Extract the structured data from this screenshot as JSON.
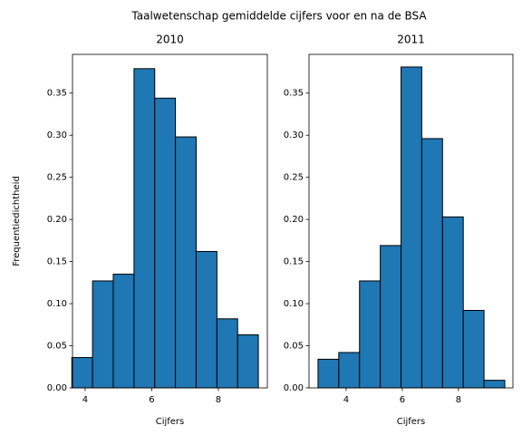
{
  "title": "Taalwetenschap gemiddelde cijfers voor en na de BSA",
  "chart_data": [
    {
      "type": "histogram",
      "title": "2010",
      "x_label": "Cijfers",
      "y_label": "Frequentiedichtheid",
      "color": "#1f77b4",
      "bins": [
        3.6,
        4.222,
        4.844,
        5.467,
        6.089,
        6.711,
        7.333,
        7.956,
        8.578,
        9.2
      ],
      "values": [
        0.036,
        0.127,
        0.135,
        0.379,
        0.344,
        0.298,
        0.162,
        0.082,
        0.063
      ],
      "xlim": [
        3.62,
        9.47
      ],
      "xticks": [
        4,
        6,
        8
      ],
      "ylim": [
        0,
        0.396
      ],
      "yticks": [
        {
          "value": 0,
          "label": "0.00"
        },
        {
          "value": 0.05,
          "label": "0.05"
        },
        {
          "value": 0.1,
          "label": "0.10"
        },
        {
          "value": 0.15,
          "label": "0.15"
        },
        {
          "value": 0.2,
          "label": "0.20"
        },
        {
          "value": 0.25,
          "label": "0.25"
        },
        {
          "value": 0.3,
          "label": "0.30"
        },
        {
          "value": 0.35,
          "label": "0.35"
        }
      ]
    },
    {
      "type": "histogram",
      "title": "2011",
      "x_label": "Cijfers",
      "color": "#1f77b4",
      "bins": [
        3.0,
        3.739,
        4.478,
        5.217,
        5.956,
        6.694,
        7.433,
        8.172,
        8.911,
        9.65
      ],
      "values": [
        0.034,
        0.042,
        0.127,
        0.169,
        0.381,
        0.296,
        0.203,
        0.092,
        0.009
      ],
      "xlim": [
        2.68,
        9.94
      ],
      "xticks": [
        4,
        6,
        8
      ],
      "ylim": [
        0,
        0.396
      ],
      "yticks": [
        {
          "value": 0,
          "label": "0.00"
        },
        {
          "value": 0.05,
          "label": "0.05"
        },
        {
          "value": 0.1,
          "label": "0.10"
        },
        {
          "value": 0.15,
          "label": "0.15"
        },
        {
          "value": 0.2,
          "label": "0.20"
        },
        {
          "value": 0.25,
          "label": "0.25"
        },
        {
          "value": 0.3,
          "label": "0.30"
        },
        {
          "value": 0.35,
          "label": "0.35"
        }
      ]
    }
  ]
}
